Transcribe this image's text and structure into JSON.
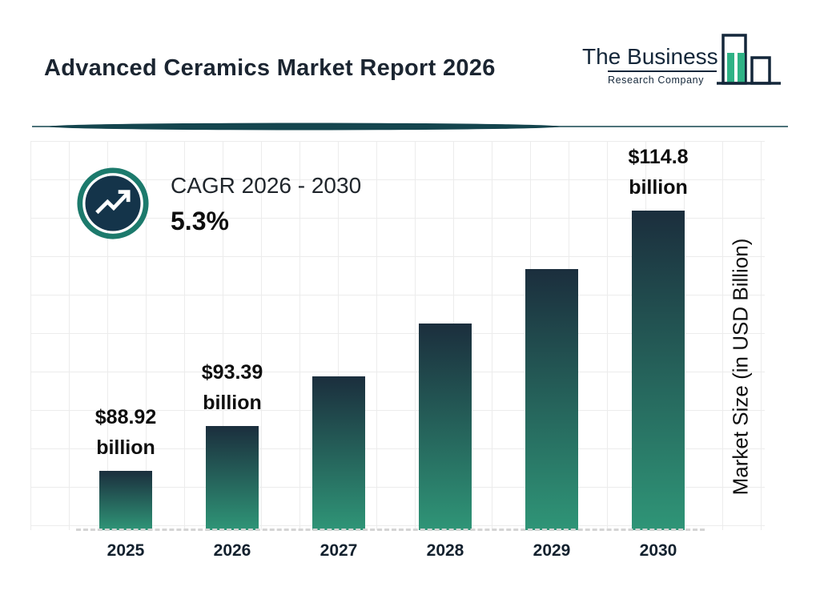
{
  "header": {
    "title": "Advanced Ceramics Market Report 2026",
    "logo": {
      "line1": "The Business",
      "line2": "Research Company"
    }
  },
  "cagr": {
    "label": "CAGR 2026 - 2030",
    "value": "5.3%"
  },
  "chart_data": {
    "type": "bar",
    "title": "Advanced Ceramics Market Report 2026",
    "categories": [
      "2025",
      "2026",
      "2027",
      "2028",
      "2029",
      "2030"
    ],
    "values": [
      88.92,
      93.39,
      98.34,
      103.55,
      109.04,
      114.8
    ],
    "bar_labels": [
      {
        "value_text": "$88.92",
        "unit_text": "billion"
      },
      {
        "value_text": "$93.39",
        "unit_text": "billion"
      },
      null,
      null,
      null,
      {
        "value_text": "$114.8",
        "unit_text": "billion"
      }
    ],
    "xlabel": "",
    "ylabel": "Market Size (in USD Billion)",
    "ylim": [
      83,
      116.5
    ],
    "grid": true,
    "legend": "none",
    "cagr_label": "CAGR 2026 - 2030",
    "cagr_value": "5.3%",
    "bar_gradient_top": "#1b2e3d",
    "bar_gradient_bottom": "#2f9577"
  },
  "colors": {
    "title_text": "#1b2531",
    "divider_teal": "#14454e",
    "ring_teal": "#1c7a6c",
    "badge_navy": "#14344a",
    "logo_green": "#2fb285",
    "logo_navy": "#14273a",
    "grid_line": "#ececec",
    "dashed_axis": "#d4d4d4"
  }
}
